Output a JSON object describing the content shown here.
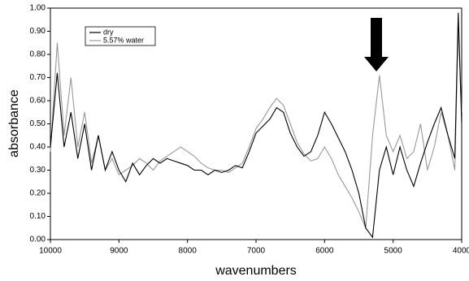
{
  "chart_data": {
    "type": "line",
    "x_label": "wavenumbers",
    "y_label": "absorbance",
    "x": [
      10000,
      9900,
      9800,
      9700,
      9600,
      9500,
      9400,
      9300,
      9200,
      9100,
      9000,
      8900,
      8800,
      8700,
      8600,
      8500,
      8400,
      8300,
      8200,
      8100,
      8000,
      7900,
      7800,
      7700,
      7600,
      7500,
      7400,
      7300,
      7200,
      7100,
      7000,
      6900,
      6800,
      6700,
      6600,
      6500,
      6400,
      6300,
      6200,
      6100,
      6000,
      5900,
      5800,
      5700,
      5600,
      5500,
      5400,
      5300,
      5200,
      5100,
      5000,
      4900,
      4800,
      4700,
      4600,
      4500,
      4400,
      4300,
      4200,
      4100,
      4050,
      4000
    ],
    "series": [
      {
        "name": "dry",
        "color": "#000000",
        "values": [
          0.4,
          0.72,
          0.4,
          0.55,
          0.35,
          0.5,
          0.3,
          0.45,
          0.3,
          0.38,
          0.3,
          0.25,
          0.33,
          0.28,
          0.32,
          0.35,
          0.33,
          0.35,
          0.34,
          0.33,
          0.32,
          0.3,
          0.3,
          0.28,
          0.3,
          0.29,
          0.3,
          0.32,
          0.31,
          0.38,
          0.46,
          0.49,
          0.52,
          0.57,
          0.55,
          0.46,
          0.4,
          0.36,
          0.38,
          0.45,
          0.55,
          0.5,
          0.44,
          0.38,
          0.3,
          0.2,
          0.05,
          0.01,
          0.3,
          0.4,
          0.28,
          0.4,
          0.3,
          0.23,
          0.33,
          0.42,
          0.5,
          0.57,
          0.45,
          0.35,
          0.98,
          0.5
        ]
      },
      {
        "name": "5.57% water",
        "color": "#999999",
        "values": [
          0.38,
          0.85,
          0.45,
          0.7,
          0.4,
          0.55,
          0.33,
          0.45,
          0.3,
          0.35,
          0.28,
          0.3,
          0.32,
          0.35,
          0.33,
          0.3,
          0.34,
          0.36,
          0.38,
          0.4,
          0.38,
          0.36,
          0.33,
          0.31,
          0.3,
          0.3,
          0.29,
          0.31,
          0.33,
          0.4,
          0.48,
          0.52,
          0.57,
          0.61,
          0.58,
          0.5,
          0.42,
          0.37,
          0.34,
          0.35,
          0.4,
          0.35,
          0.28,
          0.23,
          0.18,
          0.12,
          0.05,
          0.45,
          0.71,
          0.45,
          0.38,
          0.45,
          0.35,
          0.38,
          0.5,
          0.3,
          0.4,
          0.55,
          0.45,
          0.3,
          0.92,
          0.55
        ]
      }
    ],
    "xlim": [
      10000,
      4000
    ],
    "xticks": [
      10000,
      9000,
      8000,
      7000,
      6000,
      5000,
      4000
    ],
    "ylim": [
      0,
      1
    ],
    "yticks": [
      {
        "value": 0,
        "label": "0.00"
      },
      {
        "value": 0.1,
        "label": "0.10"
      },
      {
        "value": 0.2,
        "label": "0.20"
      },
      {
        "value": 0.3,
        "label": "0.30"
      },
      {
        "value": 0.4,
        "label": "0.40"
      },
      {
        "value": 0.5,
        "label": "0.50"
      },
      {
        "value": 0.6,
        "label": "0.60"
      },
      {
        "value": 0.7,
        "label": "0.70"
      },
      {
        "value": 0.8,
        "label": "0.80"
      },
      {
        "value": 0.9,
        "label": "0.90"
      },
      {
        "value": 1,
        "label": "1.00"
      }
    ],
    "grid": false
  }
}
